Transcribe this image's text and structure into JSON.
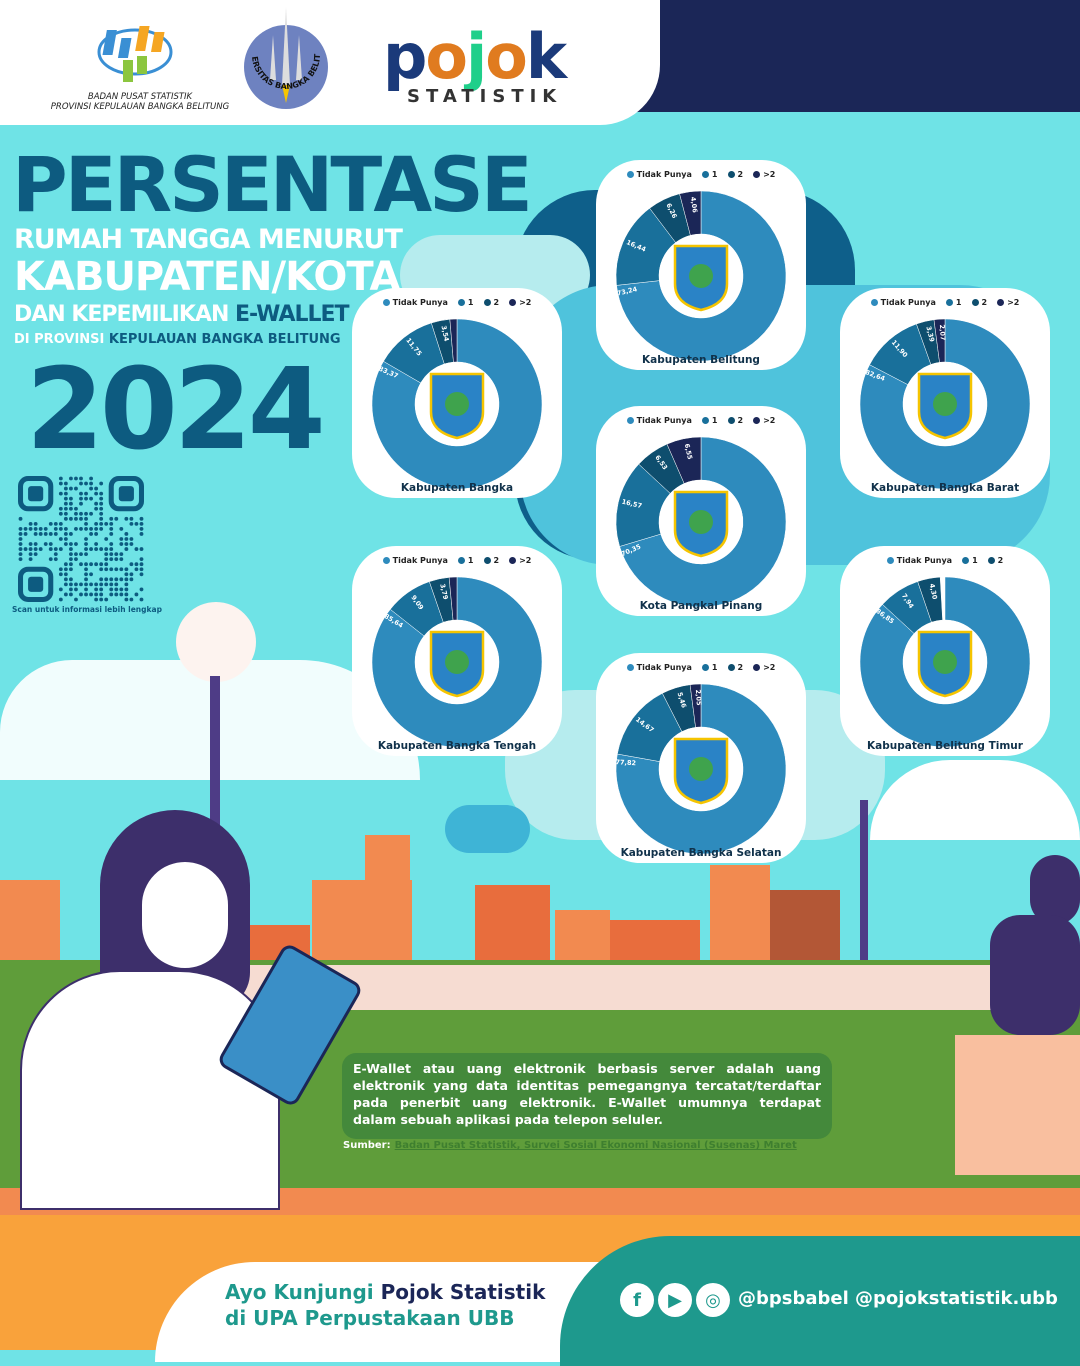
{
  "header": {
    "bps_line1": "BADAN PUSAT STATISTIK",
    "bps_line2": "PROVINSI KEPULAUAN BANGKA BELITUNG",
    "ubb_logo_text": "UNIVERSITAS BANGKA BELITUNG",
    "pojok_logo": "pojok",
    "pojok_sub": "STATISTIK"
  },
  "title": {
    "line1": "PERSENTASE",
    "line2": "RUMAH TANGGA MENURUT",
    "line3": "KABUPATEN/KOTA",
    "line4_a": "DAN KEPEMILIKAN ",
    "line4_b": "E-WALLET",
    "line5_a": "DI PROVINSI ",
    "line5_b": "KEPULAUAN BANGKA BELITUNG",
    "year": "2024"
  },
  "qr": {
    "caption": "Scan untuk informasi lebih lengkap"
  },
  "colors": {
    "tidak_punya": "#2e8bbd",
    "satu": "#19709b",
    "dua": "#0e4e6e",
    "lebih_dua": "#1b2657"
  },
  "chart_data": {
    "type": "pie",
    "variant": "donut",
    "legend_placement": "top",
    "categories": [
      "Tidak Punya",
      "1",
      "2",
      ">2"
    ],
    "charts": [
      {
        "id": "belitung",
        "name": "Kabupaten Belitung",
        "labels": [
          "73,24",
          "16,44",
          "6,26",
          "4,06"
        ],
        "values": [
          73.24,
          16.44,
          6.26,
          4.06
        ]
      },
      {
        "id": "bangka",
        "name": "Kabupaten Bangka",
        "labels": [
          "83,37",
          "11,75",
          "3,54",
          ""
        ],
        "values": [
          83.37,
          11.75,
          3.54,
          1.34
        ]
      },
      {
        "id": "bangkabarat",
        "name": "Kabupaten Bangka Barat",
        "labels": [
          "82,64",
          "11,90",
          "3,39",
          "2,07"
        ],
        "values": [
          82.64,
          11.9,
          3.39,
          2.07
        ]
      },
      {
        "id": "pangkalpinang",
        "name": "Kota Pangkal Pinang",
        "labels": [
          "70,35",
          "16,57",
          "6,53",
          "6,55"
        ],
        "values": [
          70.35,
          16.57,
          6.53,
          6.55
        ]
      },
      {
        "id": "bangkatengah",
        "name": "Kabupaten Bangka Tengah",
        "labels": [
          "85,64",
          "9,09",
          "3,79",
          ""
        ],
        "values": [
          85.64,
          9.09,
          3.79,
          1.48
        ]
      },
      {
        "id": "belitungtimur",
        "name": "Kabupaten Belitung Timur",
        "legend": [
          "Tidak Punya",
          "1",
          "2"
        ],
        "labels": [
          "86,85",
          "7,94",
          "4,30"
        ],
        "values": [
          86.85,
          7.94,
          4.3
        ]
      },
      {
        "id": "bangkaselatan",
        "name": "Kabupaten Bangka Selatan",
        "labels": [
          "77,82",
          "14,67",
          "5,46",
          "2,05"
        ],
        "values": [
          77.82,
          14.67,
          5.46,
          2.05
        ]
      }
    ]
  },
  "note": {
    "text": "E-Wallet atau uang elektronik berbasis server adalah uang elektronik yang data identitas pemegangnya tercatat/terdaftar pada penerbit uang elektronik. E-Wallet umumnya terdapat dalam sebuah aplikasi pada telepon seluler.",
    "source_label": "Sumber:",
    "source_link": "Badan Pusat Statistik, Survei Sosial Ekonomi Nasional (Susenas) Maret"
  },
  "footer": {
    "line1_a": "Ayo Kunjungi ",
    "line1_b": "Pojok Statistik",
    "line2": "di UPA Perpustakaan UBB",
    "handles": "@bpsbabel  @pojokstatistik.ubb",
    "icons": [
      "facebook-icon",
      "youtube-icon",
      "instagram-icon"
    ]
  }
}
